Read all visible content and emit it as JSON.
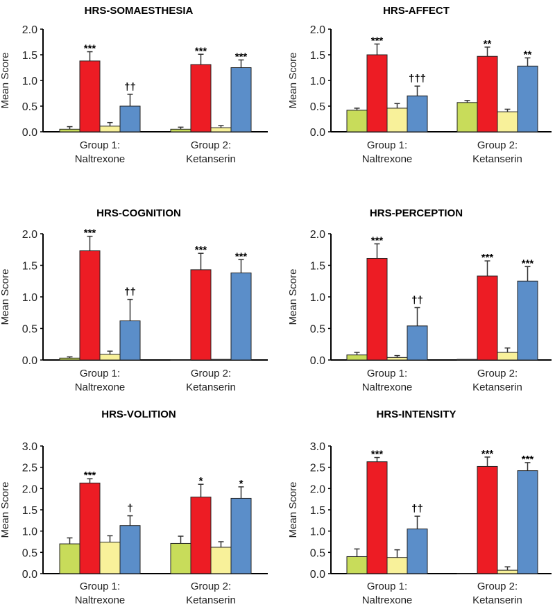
{
  "chart_data": [
    {
      "type": "bar",
      "title": "HRS-SOMAESTHESIA",
      "ylabel": "Mean Score",
      "ylim": [
        0,
        2
      ],
      "yticks": [
        "0.0",
        "0.5",
        "1.0",
        "1.5",
        "2.0"
      ],
      "categories": [
        [
          "Group 1:",
          "Naltrexone"
        ],
        [
          "Group 2:",
          "Ketanserin"
        ]
      ],
      "groups": [
        {
          "values": [
            0.05,
            1.38,
            0.11,
            0.5
          ],
          "errors": [
            0.05,
            0.18,
            0.07,
            0.23
          ],
          "annotations": [
            "",
            "***",
            "",
            "††"
          ]
        },
        {
          "values": [
            0.05,
            1.31,
            0.08,
            1.25
          ],
          "errors": [
            0.04,
            0.2,
            0.04,
            0.15
          ],
          "annotations": [
            "",
            "***",
            "",
            "***"
          ]
        }
      ]
    },
    {
      "type": "bar",
      "title": "HRS-AFFECT",
      "ylabel": "Mean Score",
      "ylim": [
        0,
        2
      ],
      "yticks": [
        "0.0",
        "0.5",
        "1.0",
        "1.5",
        "2.0"
      ],
      "categories": [
        [
          "Group 1:",
          "Naltrexone"
        ],
        [
          "Group 2:",
          "Ketanserin"
        ]
      ],
      "groups": [
        {
          "values": [
            0.42,
            1.5,
            0.46,
            0.7
          ],
          "errors": [
            0.04,
            0.21,
            0.09,
            0.19
          ],
          "annotations": [
            "",
            "***",
            "",
            "†††"
          ]
        },
        {
          "values": [
            0.57,
            1.47,
            0.39,
            1.28
          ],
          "errors": [
            0.04,
            0.18,
            0.05,
            0.16
          ],
          "annotations": [
            "",
            "**",
            "",
            "**"
          ]
        }
      ]
    },
    {
      "type": "bar",
      "title": "HRS-COGNITION",
      "ylabel": "Mean Score",
      "ylim": [
        0,
        2
      ],
      "yticks": [
        "0.0",
        "0.5",
        "1.0",
        "1.5",
        "2.0"
      ],
      "categories": [
        [
          "Group 1:",
          "Naltrexone"
        ],
        [
          "Group 2:",
          "Ketanserin"
        ]
      ],
      "groups": [
        {
          "values": [
            0.03,
            1.73,
            0.09,
            0.62
          ],
          "errors": [
            0.02,
            0.23,
            0.05,
            0.34
          ],
          "annotations": [
            "",
            "***",
            "",
            "††"
          ]
        },
        {
          "values": [
            0.0,
            1.43,
            0.01,
            1.38
          ],
          "errors": [
            0,
            0.26,
            0,
            0.21
          ],
          "annotations": [
            "",
            "***",
            "",
            "***"
          ]
        }
      ]
    },
    {
      "type": "bar",
      "title": "HRS-PERCEPTION",
      "ylabel": "Mean Score",
      "ylim": [
        0,
        2
      ],
      "yticks": [
        "0.0",
        "0.5",
        "1.0",
        "1.5",
        "2.0"
      ],
      "categories": [
        [
          "Group 1:",
          "Naltrexone"
        ],
        [
          "Group 2:",
          "Ketanserin"
        ]
      ],
      "groups": [
        {
          "values": [
            0.08,
            1.61,
            0.04,
            0.54
          ],
          "errors": [
            0.04,
            0.23,
            0.03,
            0.29
          ],
          "annotations": [
            "",
            "***",
            "",
            "††"
          ]
        },
        {
          "values": [
            0.01,
            1.33,
            0.12,
            1.25
          ],
          "errors": [
            0,
            0.24,
            0.07,
            0.23
          ],
          "annotations": [
            "",
            "***",
            "",
            "***"
          ]
        }
      ]
    },
    {
      "type": "bar",
      "title": "HRS-VOLITION",
      "ylabel": "Mean Score",
      "ylim": [
        0,
        3
      ],
      "yticks": [
        "0.0",
        "0.5",
        "1.0",
        "1.5",
        "2.0",
        "2.5",
        "3.0"
      ],
      "categories": [
        [
          "Group 1:",
          "Naltrexone"
        ],
        [
          "Group 2:",
          "Ketanserin"
        ]
      ],
      "groups": [
        {
          "values": [
            0.7,
            2.13,
            0.74,
            1.13
          ],
          "errors": [
            0.14,
            0.1,
            0.15,
            0.23
          ],
          "annotations": [
            "",
            "***",
            "",
            "†"
          ]
        },
        {
          "values": [
            0.71,
            1.8,
            0.62,
            1.77
          ],
          "errors": [
            0.17,
            0.3,
            0.13,
            0.27
          ],
          "annotations": [
            "",
            "*",
            "",
            "*"
          ]
        }
      ]
    },
    {
      "type": "bar",
      "title": "HRS-INTENSITY",
      "ylabel": "Mean Score",
      "ylim": [
        0,
        3
      ],
      "yticks": [
        "0.0",
        "0.5",
        "1.0",
        "1.5",
        "2.0",
        "2.5",
        "3.0"
      ],
      "categories": [
        [
          "Group 1:",
          "Naltrexone"
        ],
        [
          "Group 2:",
          "Ketanserin"
        ]
      ],
      "groups": [
        {
          "values": [
            0.4,
            2.63,
            0.38,
            1.05
          ],
          "errors": [
            0.18,
            0.1,
            0.18,
            0.3
          ],
          "annotations": [
            "",
            "***",
            "",
            "††"
          ]
        },
        {
          "values": [
            0.0,
            2.52,
            0.08,
            2.42
          ],
          "errors": [
            0,
            0.22,
            0.08,
            0.19
          ],
          "annotations": [
            "",
            "***",
            "",
            "***"
          ]
        }
      ]
    }
  ],
  "colors": [
    "#c8dc5a",
    "#ed1c24",
    "#f8f19a",
    "#5b8ec9"
  ]
}
